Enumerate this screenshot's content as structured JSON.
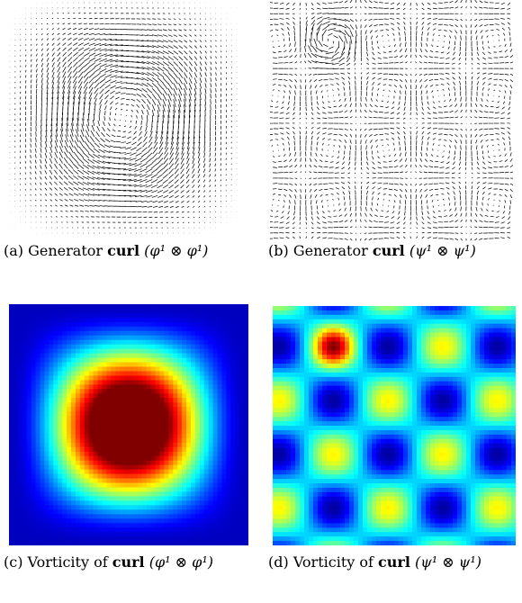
{
  "panels": [
    {
      "label": "(a)",
      "caption": "Generator",
      "bold": "curl",
      "math": "(φ¹ ⊗ φ¹)"
    },
    {
      "label": "(b)",
      "caption": "Generator",
      "bold": "curl",
      "math": "(ψ¹ ⊗ ψ¹)"
    },
    {
      "label": "(c)",
      "caption": "Vorticity of",
      "bold": "curl",
      "math": "(φ¹ ⊗ φ¹)"
    },
    {
      "label": "(d)",
      "caption": "Vorticity of",
      "bold": "curl",
      "math": "(ψ¹ ⊗ ψ¹)"
    }
  ]
}
